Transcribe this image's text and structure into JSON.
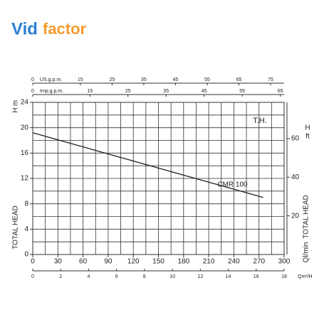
{
  "logo": [
    "Vid",
    "factor"
  ],
  "chart_data": {
    "type": "line",
    "y_label": "TOTAL HEAD",
    "y_unit": [
      "H",
      "m"
    ],
    "annotation": "T.H.",
    "x_label": "Ql/min",
    "xlim": [
      0,
      300
    ],
    "xticks": [
      0,
      30,
      60,
      90,
      120,
      150,
      180,
      210,
      240,
      270,
      300
    ],
    "ylim": [
      0,
      24
    ],
    "yticks": [
      0,
      4,
      8,
      12,
      16,
      20,
      24
    ],
    "grid_x": [
      0,
      15,
      30,
      45,
      60,
      75,
      90,
      105,
      120,
      135,
      150,
      165,
      180,
      195,
      210,
      225,
      240,
      255,
      270,
      285,
      300
    ],
    "grid_y": [
      0,
      2,
      4,
      6,
      8,
      10,
      12,
      14,
      16,
      18,
      20,
      22,
      24
    ],
    "series": [
      {
        "name": "CMR 100",
        "color": "#222222",
        "x": [
          0,
          275
        ],
        "values": [
          19.2,
          9
        ]
      }
    ],
    "secondary_axes": [
      {
        "label": "US.g.p.m.",
        "position": "top",
        "lim": [
          0,
          79.25
        ],
        "ticks": [
          0,
          15,
          25,
          35,
          45,
          55,
          65,
          75
        ]
      },
      {
        "label": "Imp.g.p.m.",
        "position": "top",
        "lim": [
          0,
          66
        ],
        "ticks": [
          0,
          15,
          25,
          35,
          45,
          55,
          65
        ]
      },
      {
        "label": "Qm³/H",
        "position": "bottom",
        "lim": [
          0,
          18
        ],
        "ticks": [
          0,
          2,
          4,
          6,
          8,
          10,
          12,
          14,
          16,
          18
        ]
      },
      {
        "label": "TOTAL HEAD",
        "unit": [
          "H",
          "ft"
        ],
        "position": "right",
        "lim": [
          0,
          78.74
        ],
        "ticks": [
          20,
          40,
          60
        ]
      }
    ]
  }
}
